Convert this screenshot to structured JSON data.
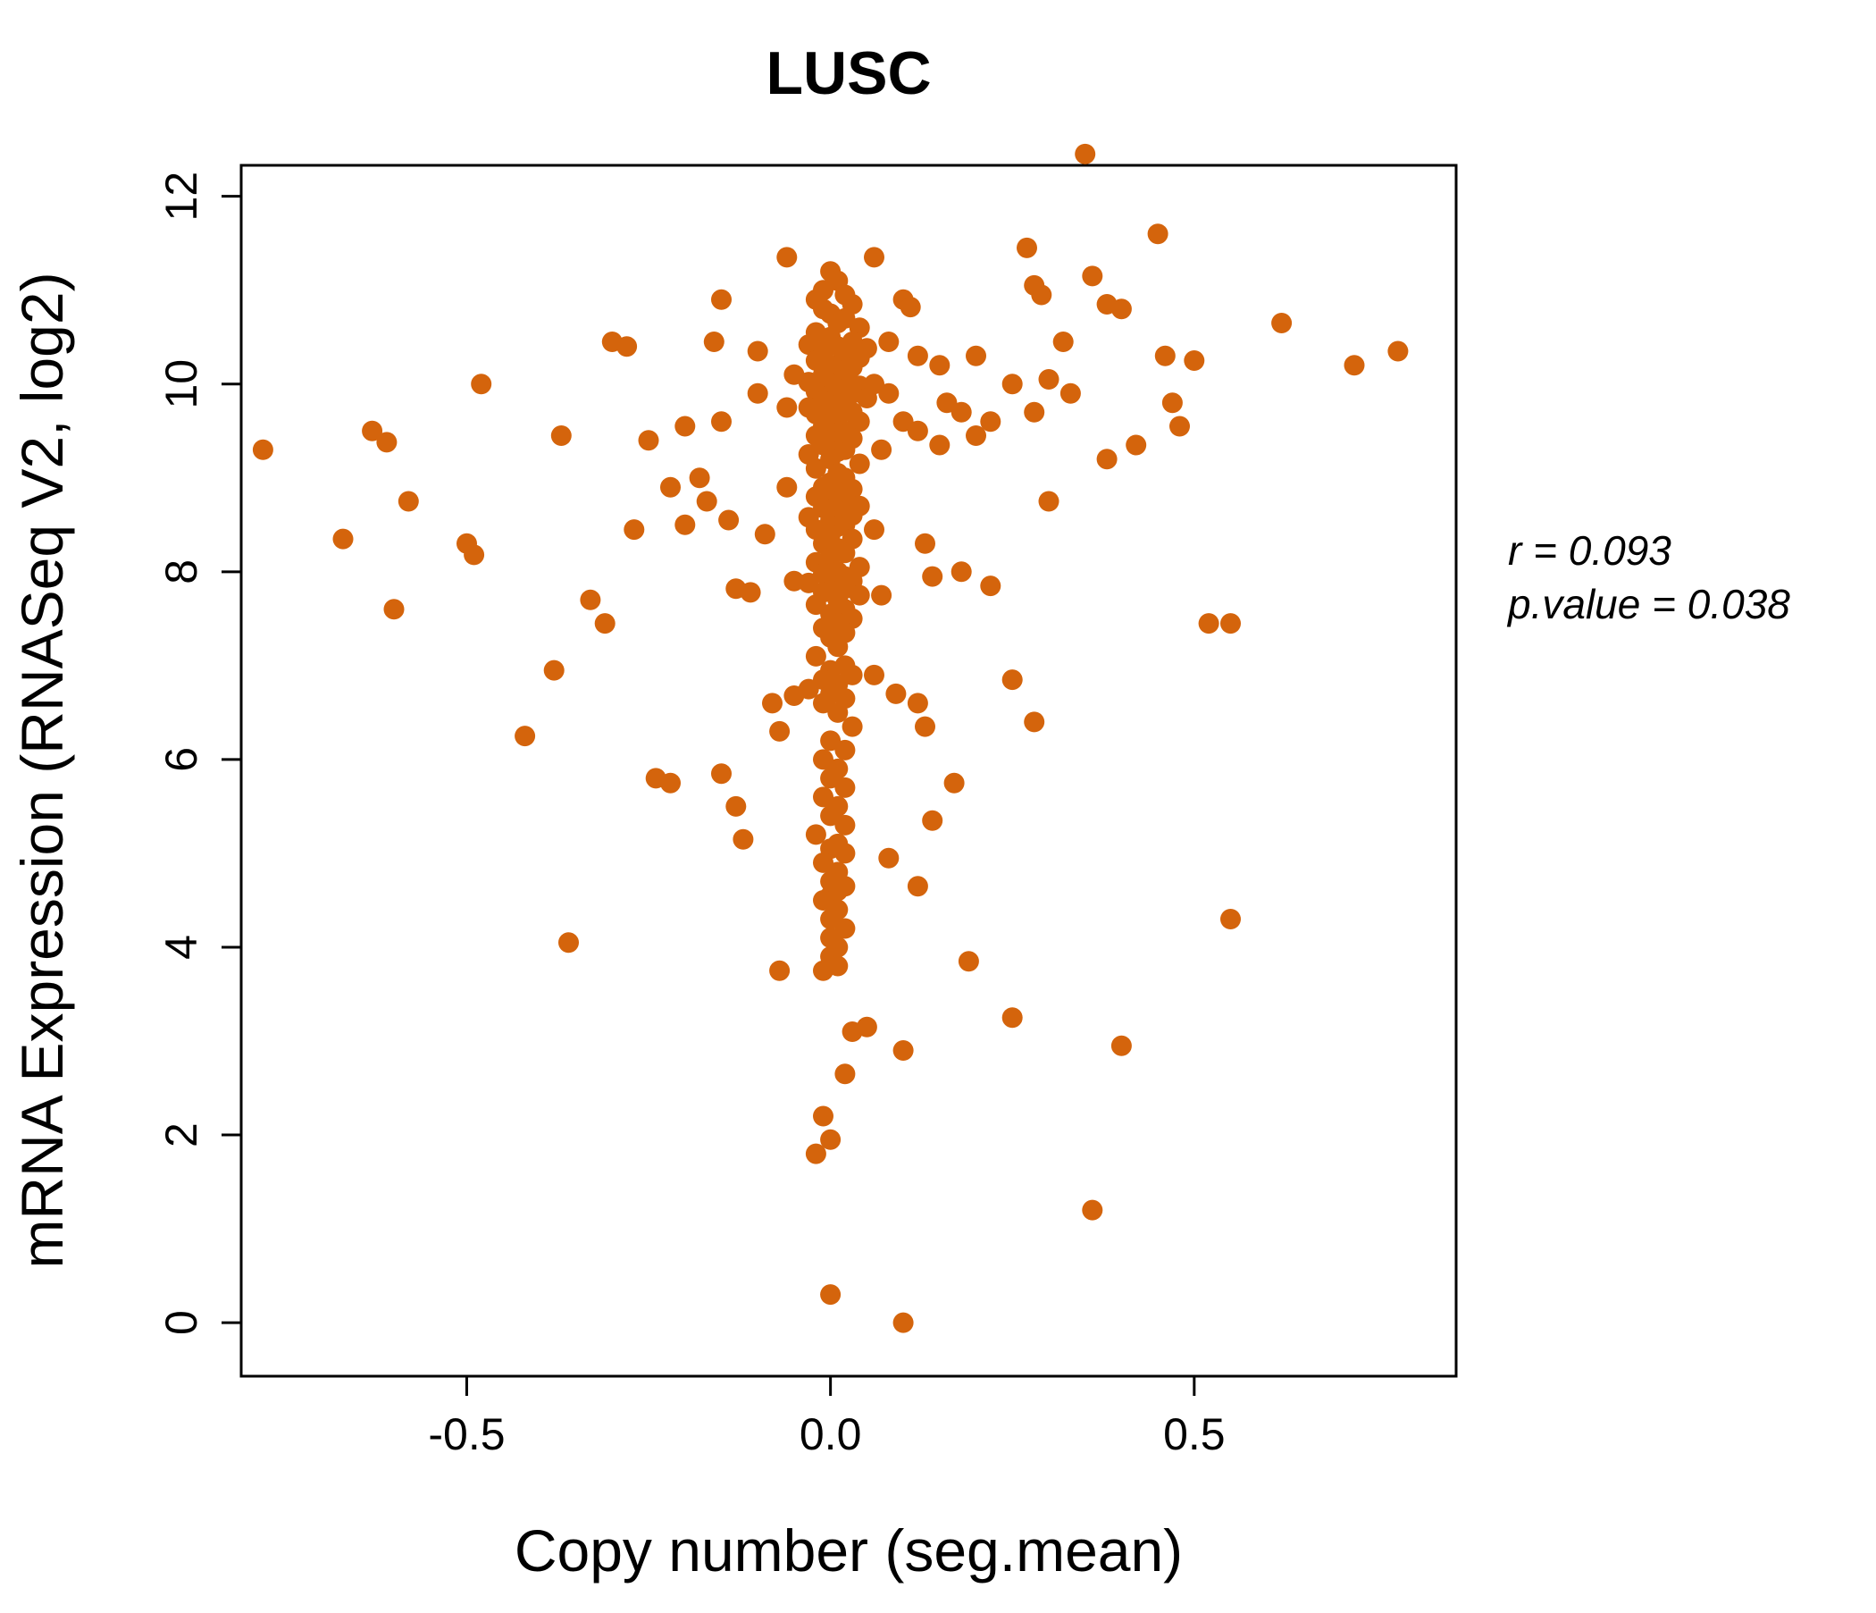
{
  "chart_data": {
    "type": "scatter",
    "title": "LUSC",
    "xlabel": "Copy number (seg.mean)",
    "ylabel": "mRNA Expression (RNASeq V2, log2)",
    "annotation": {
      "line1": "r = 0.093",
      "line2": "p.value = 0.038"
    },
    "point_color": "#D4640C",
    "title_color": "#D4640C",
    "axis_color": "#000000",
    "grid": false,
    "legend": "none",
    "xlim": [
      -0.81,
      0.86
    ],
    "ylim": [
      -0.57,
      12.33
    ],
    "x_ticks": [
      -0.5,
      0.0,
      0.5
    ],
    "y_ticks": [
      0,
      2,
      4,
      6,
      8,
      10,
      12
    ],
    "points": [
      [
        0.0,
        11.2
      ],
      [
        0.01,
        11.1
      ],
      [
        -0.01,
        11.0
      ],
      [
        0.02,
        10.95
      ],
      [
        -0.02,
        10.9
      ],
      [
        0.03,
        10.85
      ],
      [
        -0.01,
        10.8
      ],
      [
        0.0,
        10.75
      ],
      [
        0.02,
        10.7
      ],
      [
        0.01,
        10.65
      ],
      [
        0.04,
        10.6
      ],
      [
        -0.02,
        10.55
      ],
      [
        0.0,
        10.5
      ],
      [
        0.03,
        10.45
      ],
      [
        -0.03,
        10.42
      ],
      [
        0.01,
        10.4
      ],
      [
        0.05,
        10.38
      ],
      [
        -0.01,
        10.35
      ],
      [
        0.02,
        10.3
      ],
      [
        0.04,
        10.28
      ],
      [
        -0.02,
        10.25
      ],
      [
        0.0,
        10.2
      ],
      [
        0.03,
        10.18
      ],
      [
        0.01,
        10.15
      ],
      [
        -0.01,
        10.1
      ],
      [
        0.02,
        10.05
      ],
      [
        -0.03,
        10.02
      ],
      [
        0.0,
        10.0
      ],
      [
        0.04,
        9.98
      ],
      [
        0.01,
        9.95
      ],
      [
        -0.02,
        9.92
      ],
      [
        0.03,
        9.9
      ],
      [
        0.0,
        9.88
      ],
      [
        0.05,
        9.85
      ],
      [
        -0.01,
        9.82
      ],
      [
        0.02,
        9.8
      ],
      [
        0.01,
        9.78
      ],
      [
        -0.03,
        9.75
      ],
      [
        0.0,
        9.72
      ],
      [
        0.03,
        9.7
      ],
      [
        -0.02,
        9.68
      ],
      [
        0.01,
        9.65
      ],
      [
        0.04,
        9.6
      ],
      [
        0.0,
        9.58
      ],
      [
        -0.01,
        9.55
      ],
      [
        0.02,
        9.5
      ],
      [
        0.01,
        9.48
      ],
      [
        -0.02,
        9.45
      ],
      [
        0.03,
        9.42
      ],
      [
        0.0,
        9.4
      ],
      [
        -0.01,
        9.35
      ],
      [
        0.02,
        9.3
      ],
      [
        0.01,
        9.28
      ],
      [
        -0.03,
        9.25
      ],
      [
        0.0,
        9.2
      ],
      [
        0.04,
        9.15
      ],
      [
        -0.02,
        9.1
      ],
      [
        0.01,
        9.05
      ],
      [
        0.02,
        9.0
      ],
      [
        0.0,
        8.95
      ],
      [
        -0.01,
        8.9
      ],
      [
        0.03,
        8.88
      ],
      [
        0.01,
        8.85
      ],
      [
        -0.02,
        8.8
      ],
      [
        0.02,
        8.78
      ],
      [
        0.0,
        8.75
      ],
      [
        0.04,
        8.7
      ],
      [
        -0.01,
        8.68
      ],
      [
        0.01,
        8.65
      ],
      [
        0.03,
        8.6
      ],
      [
        -0.03,
        8.58
      ],
      [
        0.0,
        8.55
      ],
      [
        0.02,
        8.5
      ],
      [
        0.01,
        8.48
      ],
      [
        -0.02,
        8.45
      ],
      [
        0.0,
        8.4
      ],
      [
        0.03,
        8.35
      ],
      [
        -0.01,
        8.3
      ],
      [
        0.01,
        8.25
      ],
      [
        0.02,
        8.2
      ],
      [
        0.0,
        8.15
      ],
      [
        -0.02,
        8.1
      ],
      [
        0.04,
        8.05
      ],
      [
        0.01,
        8.0
      ],
      [
        -0.01,
        7.98
      ],
      [
        0.02,
        7.95
      ],
      [
        0.0,
        7.92
      ],
      [
        0.03,
        7.9
      ],
      [
        -0.03,
        7.88
      ],
      [
        0.01,
        7.85
      ],
      [
        0.02,
        7.82
      ],
      [
        0.0,
        7.8
      ],
      [
        -0.01,
        7.78
      ],
      [
        0.04,
        7.75
      ],
      [
        0.01,
        7.7
      ],
      [
        -0.02,
        7.65
      ],
      [
        0.02,
        7.6
      ],
      [
        0.0,
        7.55
      ],
      [
        0.03,
        7.5
      ],
      [
        0.01,
        7.45
      ],
      [
        -0.01,
        7.4
      ],
      [
        0.02,
        7.35
      ],
      [
        0.0,
        7.3
      ],
      [
        0.01,
        7.2
      ],
      [
        -0.02,
        7.1
      ],
      [
        0.02,
        7.0
      ],
      [
        0.0,
        6.95
      ],
      [
        0.03,
        6.9
      ],
      [
        -0.01,
        6.85
      ],
      [
        0.01,
        6.8
      ],
      [
        -0.03,
        6.75
      ],
      [
        0.0,
        6.7
      ],
      [
        -0.05,
        6.68
      ],
      [
        0.02,
        6.65
      ],
      [
        -0.01,
        6.6
      ],
      [
        0.01,
        6.5
      ],
      [
        0.03,
        6.35
      ],
      [
        0.0,
        6.2
      ],
      [
        0.02,
        6.1
      ],
      [
        -0.01,
        6.0
      ],
      [
        0.01,
        5.9
      ],
      [
        0.0,
        5.8
      ],
      [
        0.02,
        5.7
      ],
      [
        -0.01,
        5.6
      ],
      [
        0.01,
        5.5
      ],
      [
        0.0,
        5.4
      ],
      [
        0.02,
        5.3
      ],
      [
        -0.02,
        5.2
      ],
      [
        0.01,
        5.1
      ],
      [
        0.0,
        5.05
      ],
      [
        0.02,
        5.0
      ],
      [
        -0.01,
        4.9
      ],
      [
        0.01,
        4.8
      ],
      [
        0.0,
        4.7
      ],
      [
        0.02,
        4.65
      ],
      [
        0.01,
        4.6
      ],
      [
        0.0,
        4.55
      ],
      [
        -0.01,
        4.5
      ],
      [
        0.01,
        4.4
      ],
      [
        0.0,
        4.3
      ],
      [
        0.02,
        4.2
      ],
      [
        0.0,
        4.1
      ],
      [
        0.01,
        4.0
      ],
      [
        0.0,
        3.9
      ],
      [
        0.01,
        3.8
      ],
      [
        -0.01,
        3.75
      ],
      [
        -0.78,
        9.3
      ],
      [
        -0.63,
        9.5
      ],
      [
        -0.61,
        9.38
      ],
      [
        -0.67,
        8.35
      ],
      [
        -0.6,
        7.6
      ],
      [
        -0.58,
        8.75
      ],
      [
        -0.48,
        10.0
      ],
      [
        -0.5,
        8.3
      ],
      [
        -0.49,
        8.18
      ],
      [
        -0.42,
        6.25
      ],
      [
        -0.38,
        6.95
      ],
      [
        -0.37,
        9.45
      ],
      [
        -0.36,
        4.05
      ],
      [
        -0.33,
        7.7
      ],
      [
        -0.31,
        7.45
      ],
      [
        -0.3,
        10.45
      ],
      [
        -0.28,
        10.4
      ],
      [
        -0.27,
        8.45
      ],
      [
        -0.25,
        9.4
      ],
      [
        -0.24,
        5.8
      ],
      [
        -0.22,
        5.75
      ],
      [
        -0.22,
        8.9
      ],
      [
        -0.2,
        9.55
      ],
      [
        -0.2,
        8.5
      ],
      [
        -0.18,
        9.0
      ],
      [
        -0.17,
        8.75
      ],
      [
        -0.16,
        10.45
      ],
      [
        -0.15,
        10.9
      ],
      [
        -0.15,
        9.6
      ],
      [
        -0.14,
        8.55
      ],
      [
        -0.13,
        7.82
      ],
      [
        -0.11,
        7.78
      ],
      [
        -0.15,
        5.85
      ],
      [
        -0.13,
        5.5
      ],
      [
        -0.12,
        5.15
      ],
      [
        -0.1,
        10.35
      ],
      [
        -0.1,
        9.9
      ],
      [
        -0.09,
        8.4
      ],
      [
        -0.08,
        6.6
      ],
      [
        -0.07,
        6.3
      ],
      [
        -0.07,
        3.75
      ],
      [
        -0.06,
        11.35
      ],
      [
        -0.06,
        9.75
      ],
      [
        -0.05,
        10.1
      ],
      [
        -0.06,
        8.9
      ],
      [
        -0.05,
        7.9
      ],
      [
        0.06,
        11.35
      ],
      [
        0.06,
        10.0
      ],
      [
        0.07,
        9.3
      ],
      [
        0.06,
        8.45
      ],
      [
        0.07,
        7.75
      ],
      [
        0.06,
        6.9
      ],
      [
        0.08,
        10.45
      ],
      [
        0.08,
        9.9
      ],
      [
        0.1,
        10.9
      ],
      [
        0.11,
        10.82
      ],
      [
        0.1,
        9.6
      ],
      [
        0.12,
        10.3
      ],
      [
        0.12,
        9.5
      ],
      [
        0.13,
        8.3
      ],
      [
        0.14,
        7.95
      ],
      [
        0.15,
        10.2
      ],
      [
        0.15,
        9.35
      ],
      [
        0.16,
        9.8
      ],
      [
        0.18,
        9.7
      ],
      [
        0.18,
        8.0
      ],
      [
        0.2,
        10.3
      ],
      [
        0.2,
        9.45
      ],
      [
        0.22,
        9.6
      ],
      [
        0.22,
        7.85
      ],
      [
        0.25,
        10.0
      ],
      [
        0.27,
        11.45
      ],
      [
        0.28,
        11.05
      ],
      [
        0.29,
        10.95
      ],
      [
        0.28,
        9.7
      ],
      [
        0.3,
        10.05
      ],
      [
        0.3,
        8.75
      ],
      [
        0.32,
        10.45
      ],
      [
        0.33,
        9.9
      ],
      [
        0.35,
        12.45
      ],
      [
        0.36,
        11.15
      ],
      [
        0.38,
        10.85
      ],
      [
        0.38,
        9.2
      ],
      [
        0.4,
        10.8
      ],
      [
        0.42,
        9.35
      ],
      [
        0.45,
        11.6
      ],
      [
        0.46,
        10.3
      ],
      [
        0.47,
        9.8
      ],
      [
        0.48,
        9.55
      ],
      [
        0.5,
        10.25
      ],
      [
        0.52,
        7.45
      ],
      [
        0.55,
        7.45
      ],
      [
        0.55,
        4.3
      ],
      [
        0.62,
        10.65
      ],
      [
        0.72,
        10.2
      ],
      [
        0.78,
        10.35
      ],
      [
        0.0,
        0.3
      ],
      [
        0.1,
        0.0
      ],
      [
        -0.02,
        1.8
      ],
      [
        0.0,
        1.95
      ],
      [
        -0.01,
        2.2
      ],
      [
        0.02,
        2.65
      ],
      [
        0.03,
        3.1
      ],
      [
        0.05,
        3.15
      ],
      [
        0.1,
        2.9
      ],
      [
        0.25,
        3.25
      ],
      [
        0.19,
        3.85
      ],
      [
        0.36,
        1.2
      ],
      [
        0.4,
        2.95
      ],
      [
        0.08,
        4.95
      ],
      [
        0.12,
        4.65
      ],
      [
        0.14,
        5.35
      ],
      [
        0.17,
        5.75
      ],
      [
        0.13,
        6.35
      ],
      [
        0.25,
        6.85
      ],
      [
        0.28,
        6.4
      ],
      [
        0.12,
        6.6
      ],
      [
        0.09,
        6.7
      ]
    ]
  }
}
